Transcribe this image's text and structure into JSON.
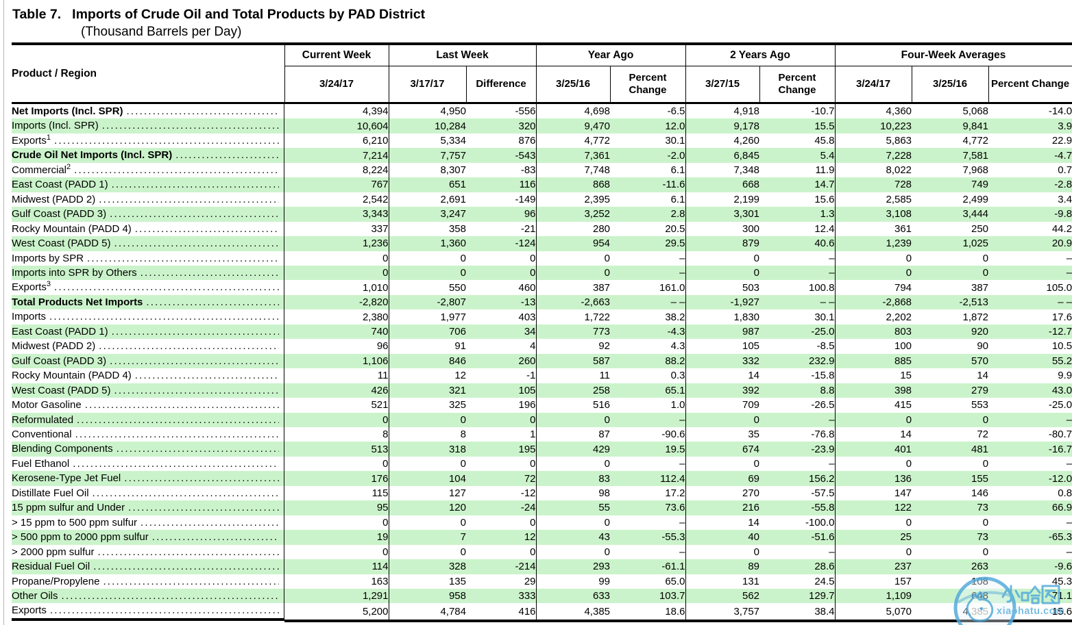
{
  "page": {
    "title_label": "Table 7.",
    "title": "Imports of Crude Oil and Total Products by PAD District",
    "subtitle": "(Thousand Barrels per Day)"
  },
  "header": {
    "product_region": "Product / Region",
    "groups": [
      {
        "label": "Current Week",
        "cols": [
          "3/24/17"
        ]
      },
      {
        "label": "Last Week",
        "cols": [
          "3/17/17",
          "Difference"
        ]
      },
      {
        "label": "Year Ago",
        "cols": [
          "3/25/16",
          "Percent Change"
        ]
      },
      {
        "label": "2 Years Ago",
        "cols": [
          "3/27/15",
          "Percent Change"
        ]
      },
      {
        "label": "Four-Week Averages",
        "cols": [
          "3/24/17",
          "3/25/16",
          "Percent Change"
        ]
      }
    ]
  },
  "table": {
    "rows": [
      {
        "label": "Net Imports (Incl. SPR)",
        "indent": 0,
        "bold": true,
        "values": [
          "4,394",
          "4,950",
          "-556",
          "4,698",
          "-6.5",
          "4,918",
          "-10.7",
          "4,360",
          "5,068",
          "-14.0"
        ]
      },
      {
        "label": "Imports (Incl. SPR)",
        "indent": 1,
        "bold": false,
        "values": [
          "10,604",
          "10,284",
          "320",
          "9,470",
          "12.0",
          "9,178",
          "15.5",
          "10,223",
          "9,841",
          "3.9"
        ]
      },
      {
        "label": "Exports",
        "sup": "1",
        "indent": 1,
        "bold": false,
        "values": [
          "6,210",
          "5,334",
          "876",
          "4,772",
          "30.1",
          "4,260",
          "45.8",
          "5,863",
          "4,772",
          "22.9"
        ]
      },
      {
        "label": "Crude Oil Net Imports (Incl. SPR)",
        "indent": 1,
        "bold": true,
        "values": [
          "7,214",
          "7,757",
          "-543",
          "7,361",
          "-2.0",
          "6,845",
          "5.4",
          "7,228",
          "7,581",
          "-4.7"
        ]
      },
      {
        "label": "Commercial",
        "sup": "2",
        "indent": 2,
        "bold": false,
        "values": [
          "8,224",
          "8,307",
          "-83",
          "7,748",
          "6.1",
          "7,348",
          "11.9",
          "8,022",
          "7,968",
          "0.7"
        ]
      },
      {
        "label": "East Coast (PADD 1)",
        "indent": 4,
        "bold": false,
        "values": [
          "767",
          "651",
          "116",
          "868",
          "-11.6",
          "668",
          "14.7",
          "728",
          "749",
          "-2.8"
        ]
      },
      {
        "label": "Midwest (PADD 2)",
        "indent": 4,
        "bold": false,
        "values": [
          "2,542",
          "2,691",
          "-149",
          "2,395",
          "6.1",
          "2,199",
          "15.6",
          "2,585",
          "2,499",
          "3.4"
        ]
      },
      {
        "label": "Gulf Coast (PADD 3)",
        "indent": 4,
        "bold": false,
        "values": [
          "3,343",
          "3,247",
          "96",
          "3,252",
          "2.8",
          "3,301",
          "1.3",
          "3,108",
          "3,444",
          "-9.8"
        ]
      },
      {
        "label": "Rocky Mountain (PADD 4)",
        "indent": 4,
        "bold": false,
        "values": [
          "337",
          "358",
          "-21",
          "280",
          "20.5",
          "300",
          "12.4",
          "361",
          "250",
          "44.2"
        ]
      },
      {
        "label": "West Coast (PADD 5)",
        "indent": 4,
        "bold": false,
        "values": [
          "1,236",
          "1,360",
          "-124",
          "954",
          "29.5",
          "879",
          "40.6",
          "1,239",
          "1,025",
          "20.9"
        ]
      },
      {
        "label": "Imports by SPR",
        "indent": 2,
        "bold": false,
        "values": [
          "0",
          "0",
          "0",
          "0",
          "–",
          "0",
          "–",
          "0",
          "0",
          "–"
        ]
      },
      {
        "label": "Imports into SPR by Others",
        "indent": 2,
        "bold": false,
        "values": [
          "0",
          "0",
          "0",
          "0",
          "–",
          "0",
          "–",
          "0",
          "0",
          "–"
        ]
      },
      {
        "label": "Exports",
        "sup": "3",
        "indent": 2,
        "bold": false,
        "values": [
          "1,010",
          "550",
          "460",
          "387",
          "161.0",
          "503",
          "100.8",
          "794",
          "387",
          "105.0"
        ]
      },
      {
        "label": "Total Products Net Imports",
        "indent": 1,
        "bold": true,
        "values": [
          "-2,820",
          "-2,807",
          "-13",
          "-2,663",
          "– –",
          "-1,927",
          "– –",
          "-2,868",
          "-2,513",
          "– –"
        ]
      },
      {
        "label": "Imports",
        "indent": 2,
        "bold": false,
        "values": [
          "2,380",
          "1,977",
          "403",
          "1,722",
          "38.2",
          "1,830",
          "30.1",
          "2,202",
          "1,872",
          "17.6"
        ]
      },
      {
        "label": "East Coast (PADD 1)",
        "indent": 4,
        "bold": false,
        "values": [
          "740",
          "706",
          "34",
          "773",
          "-4.3",
          "987",
          "-25.0",
          "803",
          "920",
          "-12.7"
        ]
      },
      {
        "label": "Midwest (PADD 2)",
        "indent": 4,
        "bold": false,
        "values": [
          "96",
          "91",
          "4",
          "92",
          "4.3",
          "105",
          "-8.5",
          "100",
          "90",
          "10.5"
        ]
      },
      {
        "label": "Gulf Coast (PADD 3)",
        "indent": 4,
        "bold": false,
        "values": [
          "1,106",
          "846",
          "260",
          "587",
          "88.2",
          "332",
          "232.9",
          "885",
          "570",
          "55.2"
        ]
      },
      {
        "label": "Rocky Mountain (PADD 4)",
        "indent": 4,
        "bold": false,
        "values": [
          "11",
          "12",
          "-1",
          "11",
          "0.3",
          "14",
          "-15.8",
          "15",
          "14",
          "9.9"
        ]
      },
      {
        "label": "West Coast (PADD 5)",
        "indent": 4,
        "bold": false,
        "values": [
          "426",
          "321",
          "105",
          "258",
          "65.1",
          "392",
          "8.8",
          "398",
          "279",
          "43.0"
        ]
      },
      {
        "label": "Motor Gasoline",
        "indent": 3,
        "bold": false,
        "values": [
          "521",
          "325",
          "196",
          "516",
          "1.0",
          "709",
          "-26.5",
          "415",
          "553",
          "-25.0"
        ]
      },
      {
        "label": "Reformulated",
        "indent": 4,
        "bold": false,
        "values": [
          "0",
          "0",
          "0",
          "0",
          "–",
          "0",
          "–",
          "0",
          "0",
          "–"
        ]
      },
      {
        "label": "Conventional",
        "indent": 4,
        "bold": false,
        "values": [
          "8",
          "8",
          "1",
          "87",
          "-90.6",
          "35",
          "-76.8",
          "14",
          "72",
          "-80.7"
        ]
      },
      {
        "label": "Blending Components",
        "indent": 4,
        "bold": false,
        "values": [
          "513",
          "318",
          "195",
          "429",
          "19.5",
          "674",
          "-23.9",
          "401",
          "481",
          "-16.7"
        ]
      },
      {
        "label": "Fuel Ethanol",
        "indent": 3,
        "bold": false,
        "values": [
          "0",
          "0",
          "0",
          "0",
          "–",
          "0",
          "–",
          "0",
          "0",
          "–"
        ]
      },
      {
        "label": "Kerosene-Type Jet Fuel",
        "indent": 3,
        "bold": false,
        "values": [
          "176",
          "104",
          "72",
          "83",
          "112.4",
          "69",
          "156.2",
          "136",
          "155",
          "-12.0"
        ]
      },
      {
        "label": "Distillate Fuel Oil",
        "indent": 3,
        "bold": false,
        "values": [
          "115",
          "127",
          "-12",
          "98",
          "17.2",
          "270",
          "-57.5",
          "147",
          "146",
          "0.8"
        ]
      },
      {
        "label": "15 ppm sulfur and Under",
        "indent": 4,
        "bold": false,
        "values": [
          "95",
          "120",
          "-24",
          "55",
          "73.6",
          "216",
          "-55.8",
          "122",
          "73",
          "66.9"
        ]
      },
      {
        "label": "> 15 ppm to 500 ppm sulfur",
        "indent": 4,
        "bold": false,
        "values": [
          "0",
          "0",
          "0",
          "0",
          "–",
          "14",
          "-100.0",
          "0",
          "0",
          "–"
        ]
      },
      {
        "label": "> 500 ppm to 2000 ppm sulfur",
        "indent": 4,
        "bold": false,
        "values": [
          "19",
          "7",
          "12",
          "43",
          "-55.3",
          "40",
          "-51.6",
          "25",
          "73",
          "-65.3"
        ]
      },
      {
        "label": "> 2000 ppm sulfur",
        "indent": 4,
        "bold": false,
        "values": [
          "0",
          "0",
          "0",
          "0",
          "–",
          "0",
          "–",
          "0",
          "0",
          "–"
        ]
      },
      {
        "label": "Residual Fuel Oil",
        "indent": 3,
        "bold": false,
        "values": [
          "114",
          "328",
          "-214",
          "293",
          "-61.1",
          "89",
          "28.6",
          "237",
          "263",
          "-9.6"
        ]
      },
      {
        "label": "Propane/Propylene",
        "indent": 3,
        "bold": false,
        "values": [
          "163",
          "135",
          "29",
          "99",
          "65.0",
          "131",
          "24.5",
          "157",
          "108",
          "45.3"
        ]
      },
      {
        "label": "Other Oils",
        "indent": 3,
        "bold": false,
        "values": [
          "1,291",
          "958",
          "333",
          "633",
          "103.7",
          "562",
          "129.7",
          "1,109",
          "648",
          "71.1"
        ]
      },
      {
        "label": "Exports",
        "indent": 2,
        "bold": false,
        "values": [
          "5,200",
          "4,784",
          "416",
          "4,385",
          "18.6",
          "3,757",
          "38.4",
          "5,070",
          "4,385",
          "15.6"
        ]
      }
    ]
  },
  "watermark": {
    "brand_chars": "小哈图",
    "domain": "xiaohatu.com"
  },
  "colors": {
    "stripe_green": "#cbf3cb",
    "watermark_blue": "#55abdb"
  }
}
